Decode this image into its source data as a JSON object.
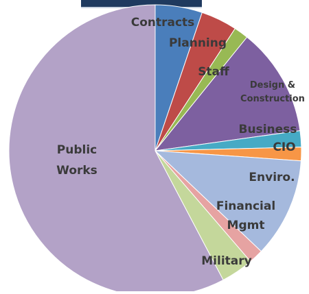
{
  "chart_data": {
    "type": "pie",
    "title": "",
    "slices": [
      {
        "label": "Contracts",
        "value": 5.2,
        "color": "#4a7ebb"
      },
      {
        "label": "Planning",
        "value": 4.0,
        "color": "#be4b48"
      },
      {
        "label": "Staff",
        "value": 1.6,
        "color": "#98b954"
      },
      {
        "label": "Design & Construction",
        "value": 12.0,
        "color": "#7d60a0"
      },
      {
        "label": "Business",
        "value": 1.8,
        "color": "#46aac5"
      },
      {
        "label": "CIO",
        "value": 1.5,
        "color": "#f79646"
      },
      {
        "label": "Enviro.",
        "value": 11.0,
        "color": "#a5b9dd"
      },
      {
        "label": "Financial Mgmt",
        "value": 1.6,
        "color": "#e6a3a2"
      },
      {
        "label": "Military",
        "value": 3.6,
        "color": "#c4d79b"
      },
      {
        "label": "Public Works",
        "value": 57.7,
        "color": "#b3a2c7"
      }
    ]
  }
}
